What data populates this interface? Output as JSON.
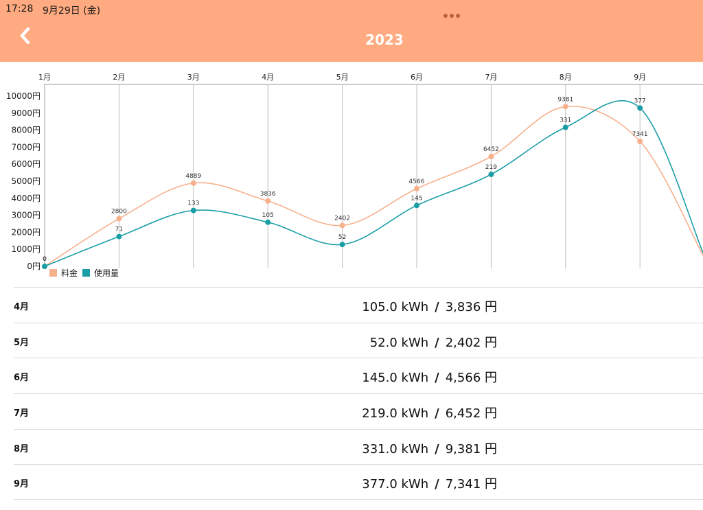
{
  "status_bar": {
    "time": "17:28",
    "date": "9月29日 (金)"
  },
  "header": {
    "title": "2023",
    "back_icon": "chevron-left-icon",
    "more_icon": "ellipsis-icon"
  },
  "colors": {
    "header_bg": "#ffaa80",
    "fee": "#f7b08c",
    "usage": "#1a9ea6"
  },
  "chart_data": {
    "type": "line",
    "categories": [
      "1月",
      "2月",
      "3月",
      "4月",
      "5月",
      "6月",
      "7月",
      "8月",
      "9月"
    ],
    "y_ticks": [
      "0円",
      "1000円",
      "2000円",
      "3000円",
      "4000円",
      "5000円",
      "6000円",
      "7000円",
      "8000円",
      "9000円",
      "10000円"
    ],
    "ylim": [
      0,
      10000
    ],
    "grid": "vertical",
    "legend": "bottom-left",
    "series": [
      {
        "name": "料金",
        "values": [
          0,
          2800,
          4889,
          3836,
          2402,
          4566,
          6452,
          9381,
          7341
        ],
        "labels": [
          "0",
          "2800",
          "4889",
          "3836",
          "2402",
          "4566",
          "6452",
          "9381",
          "7341"
        ]
      },
      {
        "name": "使用量",
        "values": [
          0,
          71,
          133,
          105,
          52,
          145,
          219,
          331,
          377
        ],
        "labels": [
          "0",
          "71",
          "133",
          "105",
          "52",
          "145",
          "219",
          "331",
          "377"
        ]
      }
    ]
  },
  "list": [
    {
      "month": "4月",
      "usage": "105.0 kWh",
      "sep": "/",
      "fee": "3,836 円"
    },
    {
      "month": "5月",
      "usage": "52.0 kWh",
      "sep": "/",
      "fee": "2,402 円"
    },
    {
      "month": "6月",
      "usage": "145.0 kWh",
      "sep": "/",
      "fee": "4,566 円"
    },
    {
      "month": "7月",
      "usage": "219.0 kWh",
      "sep": "/",
      "fee": "6,452 円"
    },
    {
      "month": "8月",
      "usage": "331.0 kWh",
      "sep": "/",
      "fee": "9,381 円"
    },
    {
      "month": "9月",
      "usage": "377.0 kWh",
      "sep": "/",
      "fee": "7,341 円"
    }
  ]
}
